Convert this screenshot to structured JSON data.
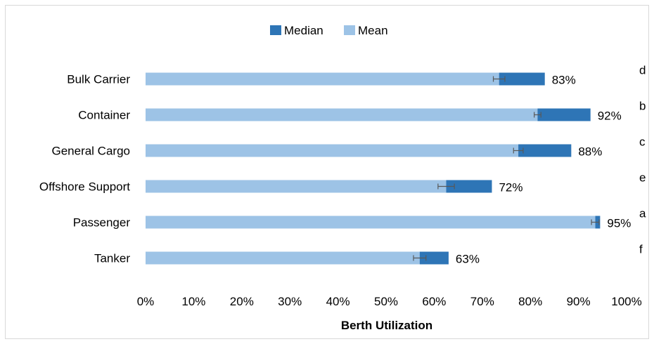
{
  "chart_data": {
    "type": "bar",
    "orientation": "horizontal",
    "categories": [
      "Bulk Carrier",
      "Container",
      "General Cargo",
      "Offshore Support",
      "Passenger",
      "Tanker"
    ],
    "series": [
      {
        "name": "Median",
        "values": [
          83,
          92.5,
          88.5,
          72,
          94.5,
          63
        ],
        "color": "#2e75b6"
      },
      {
        "name": "Mean",
        "values": [
          73.5,
          81.5,
          77.5,
          62.5,
          93.5,
          57
        ],
        "color": "#9dc3e6"
      }
    ],
    "error_bars": [
      1.2,
      0.7,
      1.0,
      1.7,
      0.8,
      1.3
    ],
    "data_labels": [
      "83%",
      "92%",
      "88%",
      "72%",
      "95%",
      "63%"
    ],
    "group_letters": [
      "d",
      "b",
      "c",
      "e",
      "a",
      "f"
    ],
    "xlabel": "Berth Utilization",
    "xlim": [
      0,
      100
    ],
    "xticks": [
      "0%",
      "10%",
      "20%",
      "30%",
      "40%",
      "50%",
      "60%",
      "70%",
      "80%",
      "90%",
      "100%"
    ],
    "legend": {
      "position": "top",
      "entries": [
        "Median",
        "Mean"
      ]
    },
    "grid": false
  }
}
